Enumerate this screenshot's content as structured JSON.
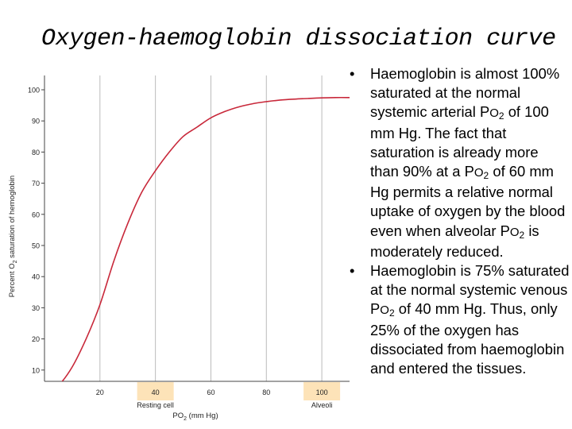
{
  "slide": {
    "title": "Oxygen-haemoglobin dissociation curve"
  },
  "bullets": [
    {
      "parts": [
        "Haemoglobin is almost 100% saturated at the normal systemic arterial P",
        "O",
        "2",
        " of 100 mm Hg. The fact that saturation is already more than 90% at a P",
        "O",
        "2",
        " of 60 mm Hg permits a relative normal uptake of oxygen by the blood even when alveolar P",
        "O",
        "2",
        " is moderately reduced."
      ]
    },
    {
      "parts": [
        "Haemoglobin is 75% saturated at the normal systemic venous P",
        "O",
        "2",
        " of 40 mm Hg. Thus, only 25% of the oxygen has dissociated from haemoglobin and entered the tissues."
      ]
    }
  ],
  "colors": {
    "curve": "#c8283a",
    "highlight_box": "#fde3b8",
    "axis": "#444444",
    "grid": "#bbbbbb"
  },
  "chart_data": {
    "type": "line",
    "title": "",
    "xlabel": "PO2 (mm Hg)",
    "ylabel": "Percent O2 saturation of hemoglobin",
    "xlim": [
      0,
      110
    ],
    "ylim": [
      0,
      100
    ],
    "grid": "vertical",
    "x_ticks": [
      20,
      40,
      60,
      80,
      100
    ],
    "y_ticks": [
      10,
      20,
      30,
      40,
      50,
      60,
      70,
      80,
      90,
      100
    ],
    "highlighted_ticks": [
      {
        "x": 40,
        "label": "Resting cell"
      },
      {
        "x": 100,
        "label": "Alveoli"
      }
    ],
    "series": [
      {
        "x": [
          0,
          5,
          10,
          15,
          20,
          25,
          30,
          35,
          40,
          45,
          50,
          55,
          60,
          65,
          70,
          75,
          80,
          85,
          90,
          95,
          100,
          105,
          110
        ],
        "y": [
          2,
          5,
          11,
          20,
          31,
          45,
          57,
          67,
          74,
          80,
          85,
          88,
          91,
          93,
          94.5,
          95.5,
          96.2,
          96.7,
          97,
          97.2,
          97.4,
          97.5,
          97.5
        ]
      }
    ]
  }
}
